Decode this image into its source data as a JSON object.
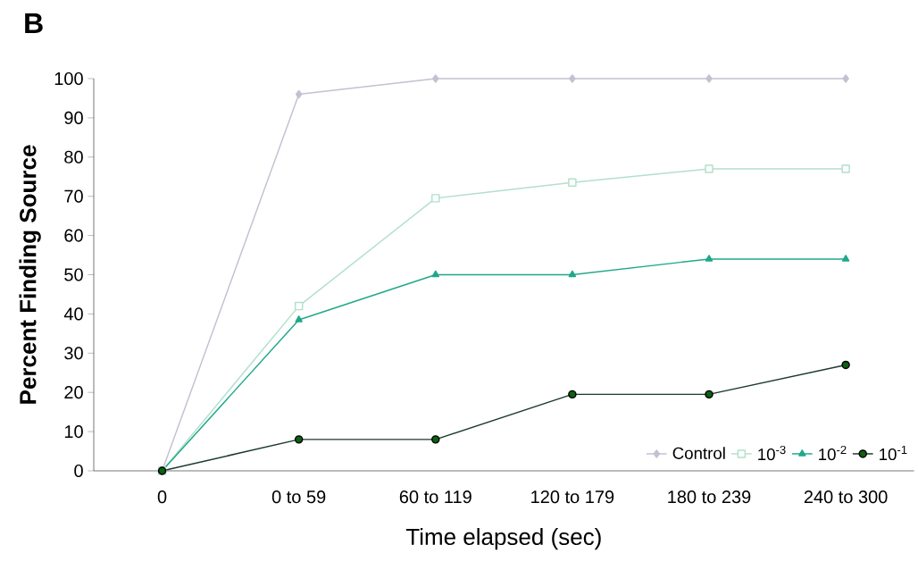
{
  "chart_data": {
    "type": "line",
    "title": "B",
    "xlabel": "Time elapsed (sec)",
    "ylabel": "Percent Finding Source",
    "categories": [
      "0",
      "0 to 59",
      "60 to 119",
      "120 to 179",
      "180 to 239",
      "240 to 300"
    ],
    "series": [
      {
        "name": "Control",
        "color": "#c3c1d2",
        "marker": "diamond",
        "values": [
          0,
          96,
          100,
          100,
          100,
          100
        ]
      },
      {
        "name": "10$^{-3}$",
        "color": "#b3e0cc",
        "marker": "square",
        "values": [
          0,
          42,
          69.5,
          73.5,
          77,
          77
        ]
      },
      {
        "name": "10$^{-2}$",
        "color": "#1fa88a",
        "marker": "triangle",
        "values": [
          0,
          38.5,
          50,
          50,
          54,
          54
        ]
      },
      {
        "name": "10$^{-1}$",
        "color": "#1c3a2a",
        "marker": "circle",
        "values": [
          0,
          8,
          8,
          19.5,
          19.5,
          27
        ]
      }
    ],
    "ylim": [
      0,
      100
    ],
    "yticks": [
      0,
      10,
      20,
      30,
      40,
      50,
      60,
      70,
      80,
      90,
      100
    ],
    "grid": false,
    "legend": "bottom right",
    "line_style": "solid"
  }
}
